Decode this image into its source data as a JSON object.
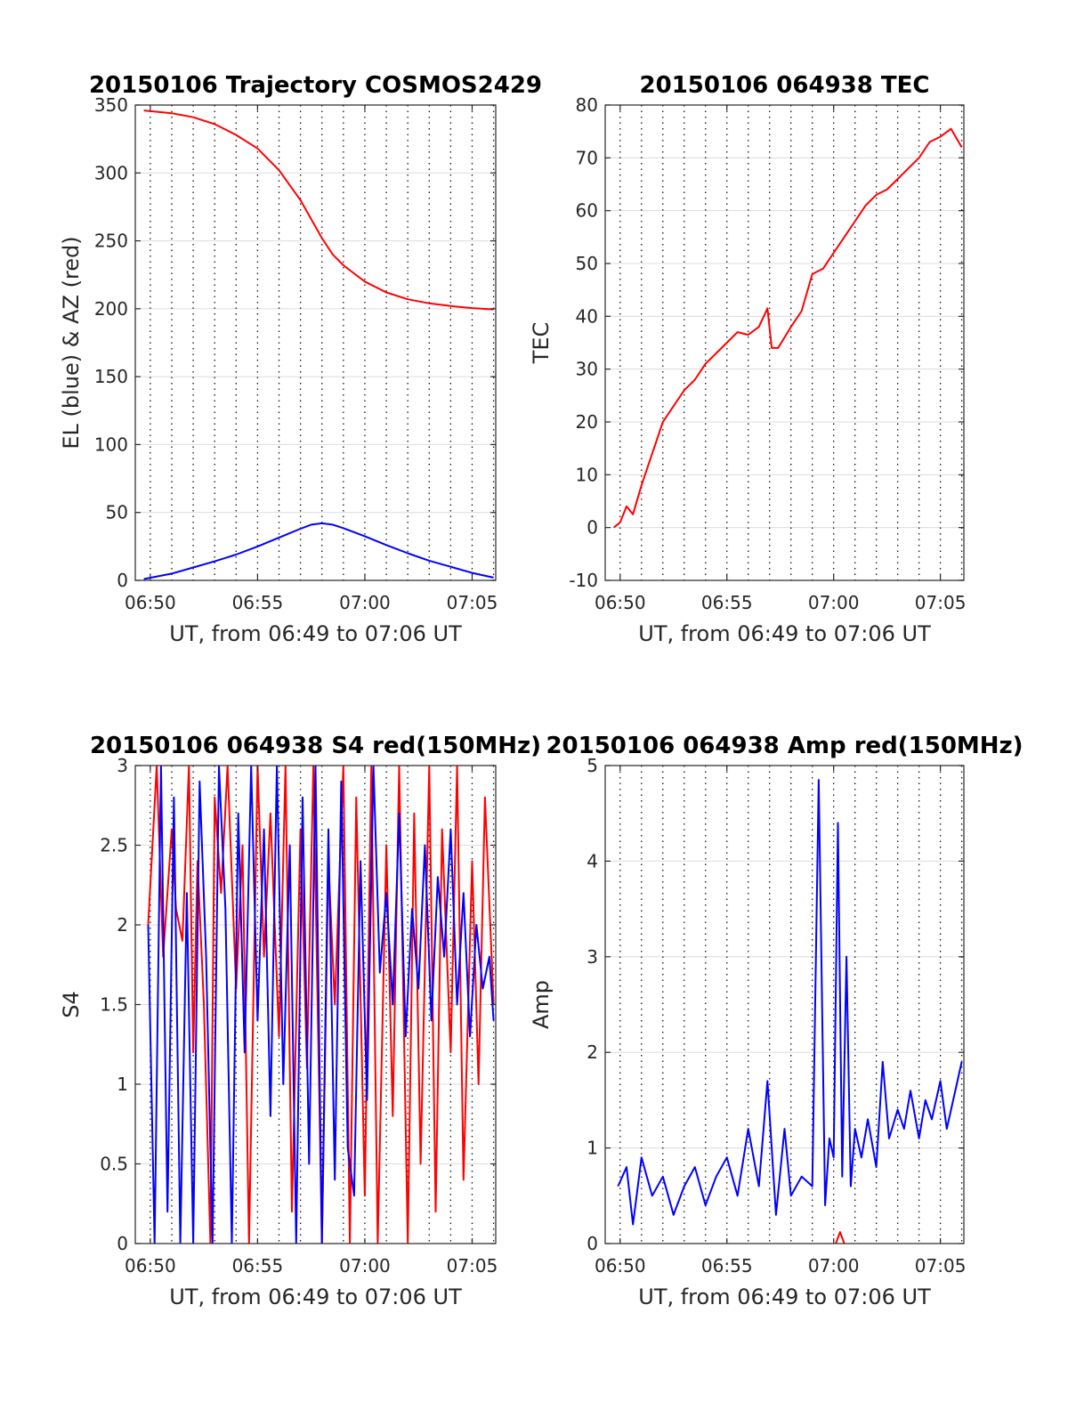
{
  "chart_data": [
    {
      "id": "trajectory",
      "type": "line",
      "title": "20150106 Trajectory COSMOS2429",
      "xlabel": "UT, from 06:49 to 07:06 UT",
      "ylabel": "EL (blue) & AZ (red)",
      "xlim": [
        -0.7,
        16.1
      ],
      "ylim": [
        0,
        350
      ],
      "x_ticks": [
        0,
        5,
        10,
        15
      ],
      "x_tick_labels": [
        "06:50",
        "06:55",
        "07:00",
        "07:05"
      ],
      "y_ticks": [
        0,
        50,
        100,
        150,
        200,
        250,
        300,
        350
      ],
      "y_tick_labels": [
        "0",
        "50",
        "100",
        "150",
        "200",
        "250",
        "300",
        "350"
      ],
      "dotted_x": [
        0,
        1,
        2,
        3,
        4,
        5,
        6,
        7,
        8,
        9,
        10,
        11,
        12,
        13,
        14,
        15,
        16
      ],
      "grid": "y-major solid, x dotted",
      "series": [
        {
          "color": "#ff0000",
          "x": [
            -0.3,
            1,
            2,
            3,
            4,
            5,
            6,
            7,
            7.5,
            8,
            8.5,
            9,
            10,
            11,
            12,
            13,
            14,
            15,
            16
          ],
          "y": [
            346,
            344,
            341,
            336,
            328,
            318,
            302,
            280,
            266,
            252,
            240,
            232,
            220,
            212,
            207,
            204,
            202,
            200.5,
            199.5
          ]
        },
        {
          "color": "#0000ff",
          "x": [
            -0.3,
            1,
            2,
            3,
            4,
            5,
            6,
            7,
            7.5,
            8,
            8.5,
            9,
            10,
            11,
            12,
            13,
            14,
            15,
            16
          ],
          "y": [
            1,
            5,
            9.5,
            14,
            19,
            25,
            31.5,
            38,
            41,
            42,
            41,
            38.5,
            32.5,
            26,
            20,
            14.5,
            10,
            5.5,
            2
          ]
        }
      ]
    },
    {
      "id": "tec",
      "type": "line",
      "title": "20150106 064938 TEC",
      "xlabel": "UT, from 06:49 to 07:06 UT",
      "ylabel": "TEC",
      "xlim": [
        -0.7,
        16.1
      ],
      "ylim": [
        -10,
        80
      ],
      "x_ticks": [
        0,
        5,
        10,
        15
      ],
      "x_tick_labels": [
        "06:50",
        "06:55",
        "07:00",
        "07:05"
      ],
      "y_ticks": [
        -10,
        0,
        10,
        20,
        30,
        40,
        50,
        60,
        70,
        80
      ],
      "y_tick_labels": [
        "-10",
        "0",
        "10",
        "20",
        "30",
        "40",
        "50",
        "60",
        "70",
        "80"
      ],
      "dotted_x": [
        0,
        1,
        2,
        3,
        4,
        5,
        6,
        7,
        8,
        9,
        10,
        11,
        12,
        13,
        14,
        15,
        16
      ],
      "series": [
        {
          "color": "#ff0000",
          "x": [
            -0.3,
            0,
            0.3,
            0.6,
            1,
            1.5,
            2,
            2.5,
            3,
            3.5,
            4,
            4.5,
            5,
            5.5,
            6,
            6.5,
            6.9,
            7.1,
            7.4,
            8,
            8.5,
            9,
            9.5,
            10,
            10.5,
            11,
            11.5,
            12,
            12.5,
            13,
            13.5,
            14,
            14.5,
            15,
            15.5,
            16
          ],
          "y": [
            0,
            1,
            4,
            2.5,
            8,
            14,
            20,
            23,
            26,
            28,
            31,
            33,
            35,
            37,
            36.5,
            38,
            41.5,
            34,
            34,
            38,
            41,
            48,
            49,
            52,
            55,
            58,
            61,
            63,
            64,
            66,
            68,
            70,
            73,
            74,
            75.5,
            72
          ]
        }
      ]
    },
    {
      "id": "s4",
      "type": "line",
      "title": "20150106 064938 S4 red(150MHz)",
      "xlabel": "UT, from 06:49 to 07:06 UT",
      "ylabel": "S4",
      "xlim": [
        -0.7,
        16.1
      ],
      "ylim": [
        0,
        3
      ],
      "x_ticks": [
        0,
        5,
        10,
        15
      ],
      "x_tick_labels": [
        "06:50",
        "06:55",
        "07:00",
        "07:05"
      ],
      "y_ticks": [
        0,
        0.5,
        1,
        1.5,
        2,
        2.5,
        3
      ],
      "y_tick_labels": [
        "0",
        "0.5",
        "1",
        "1.5",
        "2",
        "2.5",
        "3"
      ],
      "dotted_x": [
        0,
        1,
        2,
        3,
        4,
        5,
        6,
        7,
        8,
        9,
        10,
        11,
        12,
        13,
        14,
        15,
        16
      ],
      "series": [
        {
          "color": "#ff0000",
          "x": [
            -0.1,
            0.3,
            0.6,
            1,
            1.2,
            1.5,
            1.8,
            2,
            2.2,
            2.5,
            2.8,
            3,
            3.3,
            3.6,
            4,
            4.3,
            4.6,
            5,
            5.3,
            5.6,
            6,
            6.3,
            6.6,
            7,
            7.3,
            7.6,
            8,
            8.3,
            8.6,
            9,
            9.3,
            9.6,
            10,
            10.3,
            10.6,
            11,
            11.3,
            11.6,
            12,
            12.3,
            12.6,
            13,
            13.3,
            13.6,
            14,
            14.3,
            14.6,
            15,
            15.3,
            15.6,
            16
          ],
          "y": [
            2,
            3,
            1.8,
            2.6,
            2.1,
            1.9,
            3,
            1.2,
            2.4,
            1.5,
            0,
            2.8,
            2.2,
            3,
            1.6,
            2.5,
            0,
            3,
            1.8,
            2.7,
            1.3,
            3,
            0.2,
            2.6,
            1.1,
            3,
            0,
            2.4,
            1.5,
            3,
            0,
            2.8,
            0.3,
            3,
            0,
            2.5,
            0.8,
            3,
            0,
            2.7,
            0.5,
            3,
            0.2,
            2.6,
            1.2,
            3,
            0.4,
            2.4,
            1,
            2.8,
            1.5
          ]
        },
        {
          "color": "#0000ff",
          "x": [
            -0.1,
            0.2,
            0.5,
            0.8,
            1.1,
            1.4,
            1.7,
            2,
            2.3,
            2.6,
            2.9,
            3.2,
            3.5,
            3.8,
            4.1,
            4.4,
            4.7,
            5,
            5.3,
            5.6,
            5.9,
            6.2,
            6.5,
            6.8,
            7.1,
            7.4,
            7.7,
            8,
            8.3,
            8.6,
            8.9,
            9.2,
            9.5,
            9.8,
            10.1,
            10.4,
            10.7,
            11,
            11.3,
            11.6,
            11.9,
            12.2,
            12.5,
            12.8,
            13.1,
            13.4,
            13.7,
            14,
            14.3,
            14.6,
            14.9,
            15.2,
            15.5,
            15.8,
            16
          ],
          "y": [
            2,
            0,
            3,
            0.2,
            2.8,
            0,
            2.2,
            0,
            2.9,
            1.8,
            0,
            3,
            2.1,
            0,
            2.7,
            1.2,
            3,
            1.4,
            2.6,
            0.8,
            3,
            1,
            2.5,
            0,
            2.8,
            0.5,
            3,
            0,
            2.6,
            0.4,
            2.9,
            0.6,
            0.3,
            2.4,
            0.9,
            3,
            1.7,
            2.2,
            1.5,
            2.7,
            1.3,
            2.1,
            1.6,
            2.5,
            1.4,
            2.3,
            1.8,
            2.6,
            1.5,
            2.2,
            1.3,
            2,
            1.6,
            1.8,
            1.4
          ]
        }
      ]
    },
    {
      "id": "amp",
      "type": "line",
      "title": "20150106 064938 Amp red(150MHz)",
      "xlabel": "UT, from 06:49 to 07:06 UT",
      "ylabel": "Amp",
      "xlim": [
        -0.7,
        16.1
      ],
      "ylim": [
        0,
        5
      ],
      "x_ticks": [
        0,
        5,
        10,
        15
      ],
      "x_tick_labels": [
        "06:50",
        "06:55",
        "07:00",
        "07:05"
      ],
      "y_ticks": [
        0,
        1,
        2,
        3,
        4,
        5
      ],
      "y_tick_labels": [
        "0",
        "1",
        "2",
        "3",
        "4",
        "5"
      ],
      "dotted_x": [
        0,
        1,
        2,
        3,
        4,
        5,
        6,
        7,
        8,
        9,
        10,
        11,
        12,
        13,
        14,
        15,
        16
      ],
      "series": [
        {
          "color": "#0000ff",
          "x": [
            -0.1,
            0.3,
            0.6,
            1,
            1.5,
            2,
            2.5,
            3,
            3.5,
            4,
            4.5,
            5,
            5.5,
            6,
            6.5,
            6.9,
            7.3,
            7.7,
            8,
            8.5,
            9,
            9.3,
            9.6,
            9.8,
            10,
            10.2,
            10.4,
            10.6,
            10.8,
            11,
            11.3,
            11.6,
            12,
            12.3,
            12.6,
            13,
            13.3,
            13.6,
            14,
            14.3,
            14.6,
            15,
            15.3,
            15.6,
            16
          ],
          "y": [
            0.6,
            0.8,
            0.2,
            0.9,
            0.5,
            0.7,
            0.3,
            0.6,
            0.8,
            0.4,
            0.7,
            0.9,
            0.5,
            1.2,
            0.6,
            1.7,
            0.3,
            1.2,
            0.5,
            0.7,
            0.6,
            4.85,
            0.4,
            1.1,
            0.9,
            4.4,
            0.7,
            3,
            0.6,
            1.2,
            0.9,
            1.3,
            0.8,
            1.9,
            1.1,
            1.4,
            1.2,
            1.6,
            1.1,
            1.5,
            1.3,
            1.7,
            1.2,
            1.5,
            1.9
          ]
        },
        {
          "color": "#ff0000",
          "x": [
            10.1,
            10.3,
            10.5
          ],
          "y": [
            0,
            0.12,
            0
          ]
        }
      ]
    }
  ]
}
